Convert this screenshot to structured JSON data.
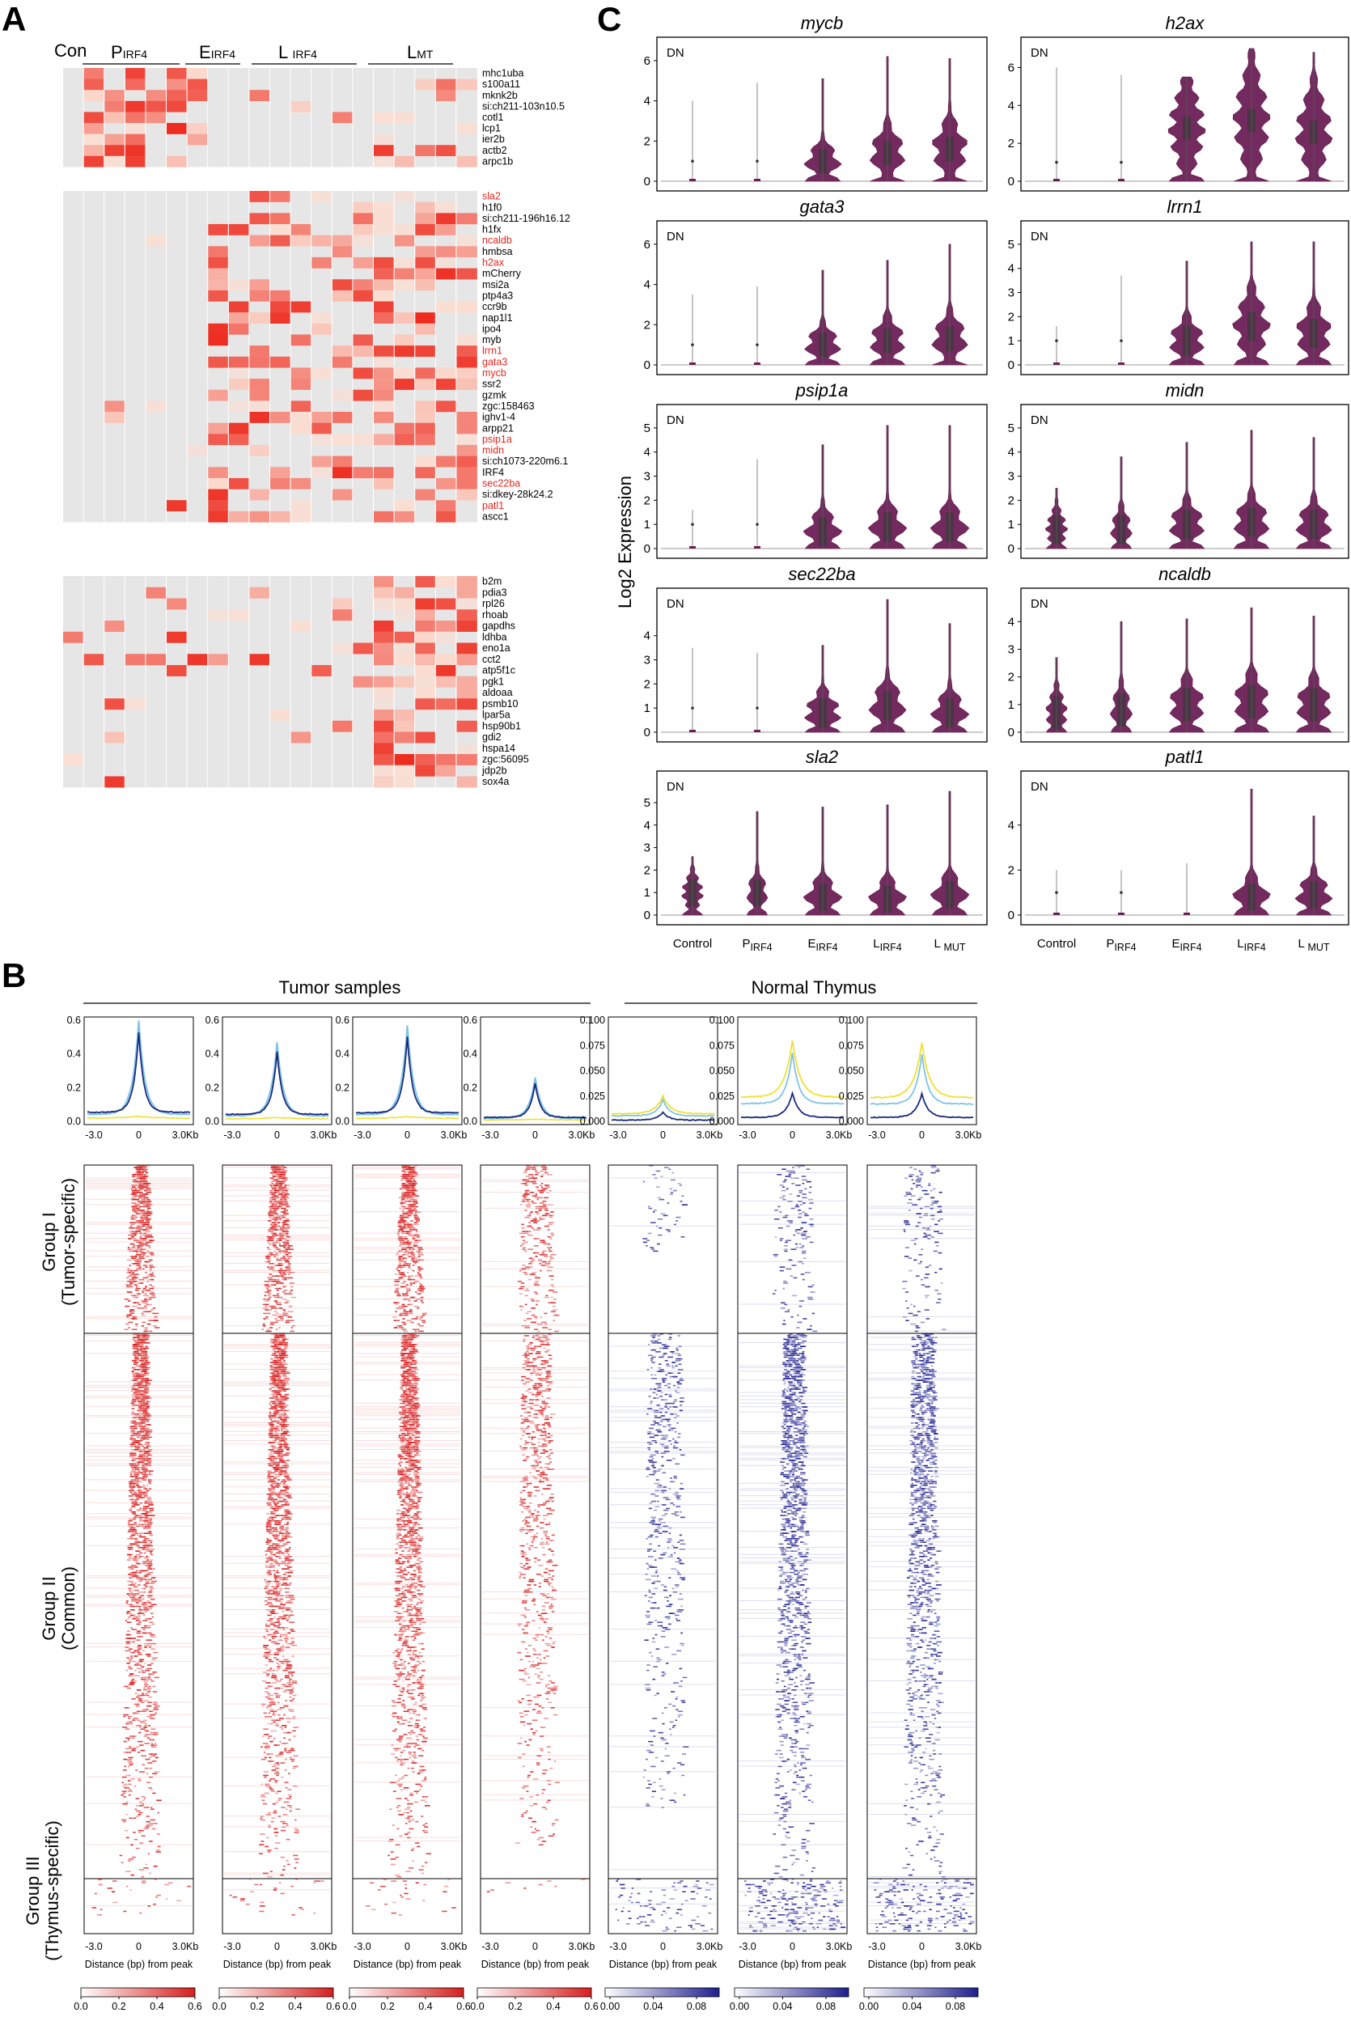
{
  "panel_labels": {
    "a": "A",
    "b": "B",
    "c": "C"
  },
  "panel_a": {
    "group_labels": [
      {
        "main": "Con",
        "sub": ""
      },
      {
        "main": "P",
        "sub": "IRF4"
      },
      {
        "main": "E",
        "sub": "IRF4"
      },
      {
        "main": "L ",
        "sub": "IRF4"
      },
      {
        "main": "L",
        "sub": "MT"
      }
    ],
    "block1_genes": [
      "mhc1uba",
      "s100a11",
      "mknk2b",
      "si:ch211-103n10.5",
      "cotl1",
      "lcp1",
      "ier2b",
      "actb2",
      "arpc1b"
    ],
    "block2_genes": [
      "sla2",
      "h1f0",
      "si:ch211-196h16.12",
      "h1fx",
      "ncaldb",
      "hmbsa",
      "h2ax",
      "mCherry",
      "msi2a",
      "ptp4a3",
      "ccr9b",
      "nap1l1",
      "ipo4",
      "myb",
      "lrrn1",
      "gata3",
      "mycb",
      "ssr2",
      "gzmk",
      "zgc:158463",
      "ighv1-4",
      "arpp21",
      "psip1a",
      "midn",
      "si:ch1073-220m6.1",
      "IRF4",
      "sec22ba",
      "si:dkey-28k24.2",
      "patl1",
      "ascc1"
    ],
    "block3_genes": [
      "b2m",
      "pdia3",
      "rpl26",
      "rhoab",
      "gapdhs",
      "ldhba",
      "eno1a",
      "cct2",
      "atp5f1c",
      "pgk1",
      "aldoaa",
      "psmb10",
      "lpar5a",
      "hsp90b1",
      "gdi2",
      "hspa14",
      "zgc:56095",
      "jdp2b",
      "sox4a"
    ],
    "highlighted_genes": [
      "sla2",
      "ncaldb",
      "h2ax",
      "lrrn1",
      "gata3",
      "mycb",
      "psip1a",
      "midn",
      "sec22ba",
      "patl1"
    ],
    "colors": {
      "low": "#e6e6e6",
      "high": "#ee2a1e",
      "highlight_text": "#e8251c"
    }
  },
  "panel_b": {
    "group_titles": [
      "Tumor samples",
      "Normal Thymus"
    ],
    "row_labels": [
      {
        "line1": "Group I",
        "line2": "(Tumor-specific)"
      },
      {
        "line1": "Group II",
        "line2": "(Common)"
      },
      {
        "line1": "Group III",
        "line2": "(Thymus-specific)"
      }
    ],
    "xticks": [
      "-3.0",
      "0",
      "3.0Kb"
    ],
    "xlabel": "Distance (bp) from peak",
    "tumor_yticks": [
      "0.0",
      "0.2",
      "0.4",
      "0.6"
    ],
    "thymus_yticks": [
      "0.000",
      "0.025",
      "0.050",
      "0.075",
      "0.100"
    ],
    "tumor_cbar_ticks": [
      "0.0",
      "0.2",
      "0.4",
      "0.6"
    ],
    "thymus_cbar_ticks": [
      "0.00",
      "0.04",
      "0.08"
    ],
    "colors": {
      "tumor": "#d81e1e",
      "thymus": "#1f1f8f",
      "line_light": "#7ec3e8",
      "line_dark": "#1a2a7a",
      "line_yellow": "#f0e030"
    }
  },
  "panel_c": {
    "ylabel": "Log2 Expression",
    "box_label": "DN",
    "x_categories": [
      {
        "main": "Control",
        "sub": ""
      },
      {
        "main": "P",
        "sub": "IRF4"
      },
      {
        "main": "E",
        "sub": "IRF4"
      },
      {
        "main": "L",
        "sub": "IRF4"
      },
      {
        "main": "L ",
        "sub": "MUT"
      }
    ],
    "violin_color": "#6b1f55"
  },
  "chart_data": [
    {
      "type": "violin",
      "title": "mycb",
      "ylim": [
        0,
        6.6
      ],
      "yticks": [
        0,
        2,
        4,
        6
      ],
      "categories": [
        "Control",
        "PIRF4",
        "EIRF4",
        "LIRF4",
        "LMUT"
      ],
      "max": [
        4.0,
        4.9,
        5.1,
        6.2,
        6.1
      ],
      "median": [
        0,
        0,
        1.0,
        1.4,
        1.6
      ]
    },
    {
      "type": "violin",
      "title": "h2ax",
      "ylim": [
        0,
        7.0
      ],
      "yticks": [
        0,
        2,
        4,
        6
      ],
      "categories": [
        "Control",
        "PIRF4",
        "EIRF4",
        "LIRF4",
        "LMUT"
      ],
      "max": [
        6.0,
        5.6,
        5.5,
        7.0,
        6.8
      ],
      "median": [
        0,
        0,
        2.8,
        3.2,
        2.6
      ]
    },
    {
      "type": "violin",
      "title": "gata3",
      "ylim": [
        0,
        6.6
      ],
      "yticks": [
        0,
        2,
        4,
        6
      ],
      "categories": [
        "Control",
        "PIRF4",
        "EIRF4",
        "LIRF4",
        "LMUT"
      ],
      "max": [
        3.5,
        3.9,
        4.7,
        5.2,
        6.0
      ],
      "median": [
        0,
        0,
        1.0,
        1.2,
        1.3
      ]
    },
    {
      "type": "violin",
      "title": "lrrn1",
      "ylim": [
        0,
        5.5
      ],
      "yticks": [
        0,
        1,
        2,
        3,
        4,
        5
      ],
      "categories": [
        "Control",
        "PIRF4",
        "EIRF4",
        "LIRF4",
        "LMUT"
      ],
      "max": [
        1.6,
        3.7,
        4.3,
        5.1,
        5.1
      ],
      "median": [
        0,
        0,
        1.0,
        1.6,
        1.3
      ]
    },
    {
      "type": "violin",
      "title": "psip1a",
      "ylim": [
        0,
        5.5
      ],
      "yticks": [
        0,
        1,
        2,
        3,
        4,
        5
      ],
      "categories": [
        "Control",
        "PIRF4",
        "EIRF4",
        "LIRF4",
        "LMUT"
      ],
      "max": [
        1.6,
        3.7,
        4.3,
        5.1,
        5.1
      ],
      "median": [
        0,
        0,
        0.7,
        0.9,
        0.9
      ]
    },
    {
      "type": "violin",
      "title": "midn",
      "ylim": [
        0,
        5.5
      ],
      "yticks": [
        0,
        1,
        2,
        3,
        4,
        5
      ],
      "categories": [
        "Control",
        "PIRF4",
        "EIRF4",
        "LIRF4",
        "LMUT"
      ],
      "max": [
        2.5,
        3.8,
        4.4,
        4.9,
        4.6
      ],
      "median": [
        0.8,
        0.8,
        1.0,
        1.1,
        1.0
      ]
    },
    {
      "type": "violin",
      "title": "sec22ba",
      "ylim": [
        0,
        5.5
      ],
      "yticks": [
        0,
        1,
        2,
        3,
        4
      ],
      "categories": [
        "Control",
        "PIRF4",
        "EIRF4",
        "LIRF4",
        "LMUT"
      ],
      "max": [
        3.5,
        3.3,
        3.6,
        5.5,
        4.5
      ],
      "median": [
        0,
        0,
        0.8,
        1.1,
        0.8
      ]
    },
    {
      "type": "violin",
      "title": "ncaldb",
      "ylim": [
        0,
        4.8
      ],
      "yticks": [
        0,
        1,
        2,
        3,
        4
      ],
      "categories": [
        "Control",
        "PIRF4",
        "EIRF4",
        "LIRF4",
        "LMUT"
      ],
      "max": [
        2.7,
        4.0,
        4.1,
        4.5,
        4.2
      ],
      "median": [
        0.7,
        0.8,
        1.0,
        1.1,
        1.0
      ]
    },
    {
      "type": "violin",
      "title": "sla2",
      "ylim": [
        0,
        5.9
      ],
      "yticks": [
        0,
        1,
        2,
        3,
        4,
        5
      ],
      "categories": [
        "Control",
        "PIRF4",
        "EIRF4",
        "LIRF4",
        "LMUT"
      ],
      "max": [
        2.6,
        4.6,
        4.8,
        4.9,
        5.5
      ],
      "median": [
        1.0,
        1.0,
        0.8,
        0.7,
        0.9
      ]
    },
    {
      "type": "violin",
      "title": "patl1",
      "ylim": [
        0,
        5.9
      ],
      "yticks": [
        0,
        2,
        4
      ],
      "categories": [
        "Control",
        "PIRF4",
        "EIRF4",
        "LIRF4",
        "LMUT"
      ],
      "max": [
        2.0,
        2.0,
        2.3,
        5.6,
        4.4
      ],
      "median": [
        0,
        0,
        0,
        0.8,
        0.9
      ]
    },
    {
      "type": "line",
      "title": "",
      "xticks": [
        "-3.0",
        "0",
        "3.0Kb"
      ],
      "ylim": [
        0,
        0.6
      ],
      "peak_values": [
        0.6,
        0.47,
        0.57,
        0.26
      ],
      "thymus_ylim": [
        0,
        0.1
      ],
      "thymus_peak_values": [
        0.025,
        0.08,
        0.078
      ]
    }
  ]
}
